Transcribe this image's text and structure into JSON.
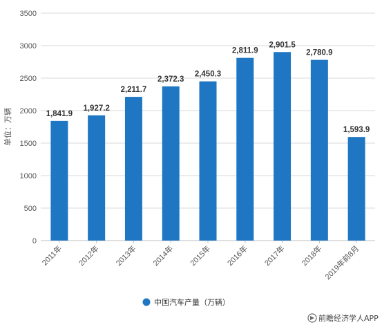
{
  "chart_data": {
    "type": "bar",
    "categories": [
      "2011年",
      "2012年",
      "2013年",
      "2014年",
      "2015年",
      "2016年",
      "2017年",
      "2018年",
      "2019年前8月"
    ],
    "series": [
      {
        "name": "中国汽车产量（万辆）",
        "values": [
          1841.9,
          1927.2,
          2211.7,
          2372.3,
          2450.3,
          2811.9,
          2901.5,
          2780.9,
          1593.9
        ],
        "value_labels": [
          "1,841.9",
          "1,927.2",
          "2,211.7",
          "2,372.3",
          "2,450.3",
          "2,811.9",
          "2,901.5",
          "2,780.9",
          "1,593.9"
        ],
        "color": "#1f77c4"
      }
    ],
    "ylabel": "单位：万辆",
    "ylim": [
      0,
      3500
    ],
    "yticks": [
      0,
      500,
      1000,
      1500,
      2000,
      2500,
      3000,
      3500
    ],
    "grid": true,
    "legend": "bottom-center"
  },
  "watermark": {
    "brand": "前瞻经济学人APP"
  },
  "colors": {
    "bar": "#1f77c4",
    "grid": "#d9d9d9",
    "axis": "#bfbfbf"
  }
}
